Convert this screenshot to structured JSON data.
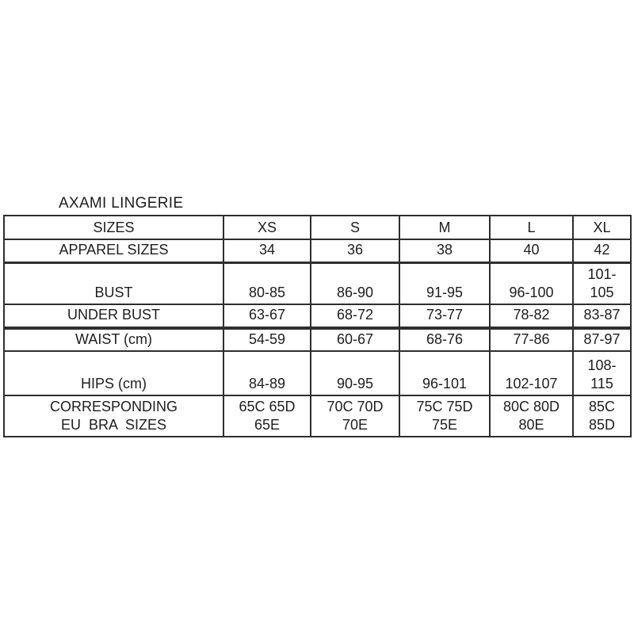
{
  "title": "AXAMI LINGERIE",
  "colors": {
    "background": "#ffffff",
    "text": "#1e1e1e",
    "table_border": "#2e2e2e"
  },
  "table": {
    "header": [
      "SIZES",
      "XS",
      "S",
      "M",
      "L",
      "XL"
    ],
    "rows": [
      {
        "label": [
          "APPAREL SIZES"
        ],
        "values": [
          [
            "34"
          ],
          [
            "36"
          ],
          [
            "38"
          ],
          [
            "40"
          ],
          [
            "42"
          ]
        ]
      },
      {
        "label": [
          "BUST"
        ],
        "values": [
          [
            "80-85"
          ],
          [
            "86-90"
          ],
          [
            "91-95"
          ],
          [
            "96-100"
          ],
          [
            "101-",
            "105"
          ]
        ]
      },
      {
        "label": [
          "UNDER BUST"
        ],
        "values": [
          [
            "63-67"
          ],
          [
            "68-72"
          ],
          [
            "73-77"
          ],
          [
            "78-82"
          ],
          [
            "83-87"
          ]
        ]
      },
      {
        "label": [
          "WAIST (cm)"
        ],
        "values": [
          [
            "54-59"
          ],
          [
            "60-67"
          ],
          [
            "68-76"
          ],
          [
            "77-86"
          ],
          [
            "87-97"
          ]
        ]
      },
      {
        "label": [
          "HIPS (cm)"
        ],
        "values": [
          [
            "84-89"
          ],
          [
            "90-95"
          ],
          [
            "96-101"
          ],
          [
            "102-107"
          ],
          [
            "108-",
            "115"
          ]
        ]
      },
      {
        "label": [
          "CORRESPONDING",
          "EU  BRA  SIZES"
        ],
        "values": [
          [
            "65C 65D",
            "65E"
          ],
          [
            "70C 70D",
            "70E"
          ],
          [
            "75C 75D",
            "75E"
          ],
          [
            "80C 80D",
            "80E"
          ],
          [
            "85C",
            "85D"
          ]
        ]
      }
    ]
  },
  "chart_data": {
    "type": "table",
    "title": "AXAMI LINGERIE",
    "columns": [
      "SIZES",
      "XS",
      "S",
      "M",
      "L",
      "XL"
    ],
    "rows": [
      [
        "APPAREL SIZES",
        "34",
        "36",
        "38",
        "40",
        "42"
      ],
      [
        "BUST",
        "80-85",
        "86-90",
        "91-95",
        "96-100",
        "101-105"
      ],
      [
        "UNDER BUST",
        "63-67",
        "68-72",
        "73-77",
        "78-82",
        "83-87"
      ],
      [
        "WAIST (cm)",
        "54-59",
        "60-67",
        "68-76",
        "77-86",
        "87-97"
      ],
      [
        "HIPS (cm)",
        "84-89",
        "90-95",
        "96-101",
        "102-107",
        "108-115"
      ],
      [
        "CORRESPONDING EU BRA SIZES",
        "65C 65D 65E",
        "70C 70D 70E",
        "75C 75D 75E",
        "80C 80D 80E",
        "85C 85D"
      ]
    ]
  }
}
